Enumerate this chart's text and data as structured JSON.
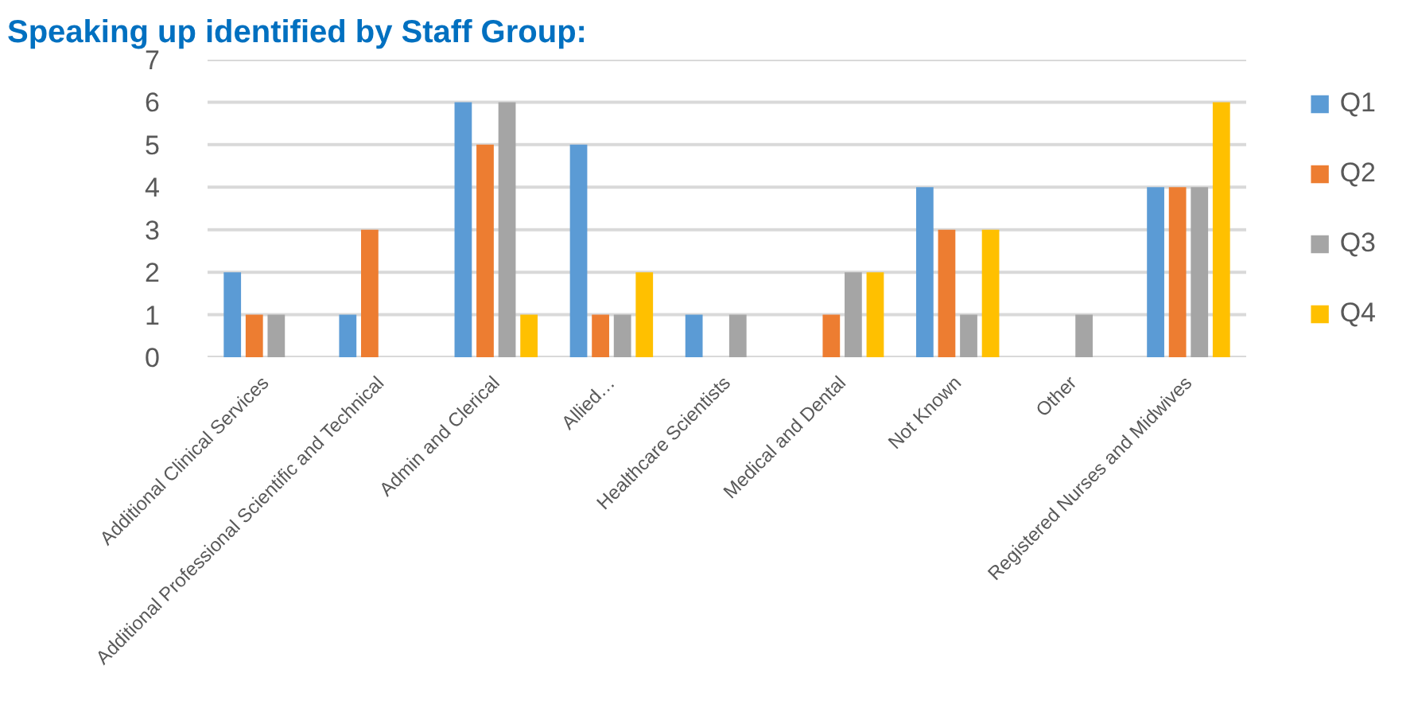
{
  "chart_data": {
    "type": "bar",
    "title": "Speaking up identified by Staff Group:",
    "categories": [
      "Additional Clinical Services",
      "Additional Professional Scientific and Technical",
      "Admin and Clerical",
      "Allied…",
      "Healthcare Scientists",
      "Medical and Dental",
      "Not Known",
      "Other",
      "Registered Nurses and Midwives"
    ],
    "series": [
      {
        "name": "Q1",
        "color": "#5b9bd5",
        "values": [
          2,
          1,
          6,
          5,
          1,
          0,
          4,
          0,
          4
        ]
      },
      {
        "name": "Q2",
        "color": "#ed7d31",
        "values": [
          1,
          3,
          5,
          1,
          0,
          1,
          3,
          0,
          4
        ]
      },
      {
        "name": "Q3",
        "color": "#a5a5a5",
        "values": [
          1,
          0,
          6,
          1,
          1,
          2,
          1,
          1,
          4
        ]
      },
      {
        "name": "Q4",
        "color": "#ffc000",
        "values": [
          0,
          0,
          1,
          2,
          0,
          2,
          3,
          0,
          6
        ]
      }
    ],
    "ylim": [
      0,
      7
    ],
    "yticks": [
      0,
      1,
      2,
      3,
      4,
      5,
      6,
      7
    ],
    "grid": "y",
    "legend": "right"
  }
}
